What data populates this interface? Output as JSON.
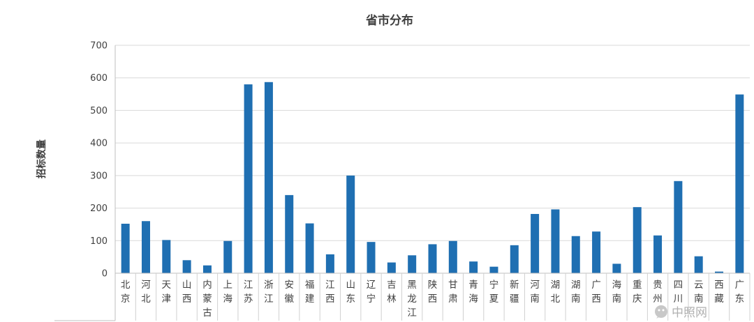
{
  "chart_data": {
    "type": "bar",
    "title": "省市分布",
    "xlabel": "",
    "ylabel": "招标数量",
    "ylim": [
      0,
      700
    ],
    "yticks": [
      0,
      100,
      200,
      300,
      400,
      500,
      600,
      700
    ],
    "grid": true,
    "legend": "none",
    "bar_color": "#1f6fb2",
    "categories": [
      "北京",
      "河北",
      "天津",
      "山西",
      "内蒙古",
      "上海",
      "江苏",
      "浙江",
      "安徽",
      "福建",
      "江西",
      "山东",
      "辽宁",
      "吉林",
      "黑龙江",
      "陕西",
      "甘肃",
      "青海",
      "宁夏",
      "新疆",
      "河南",
      "湖北",
      "湖南",
      "广西",
      "海南",
      "重庆",
      "贵州",
      "四川",
      "云南",
      "西藏",
      "广东"
    ],
    "values": [
      152,
      160,
      102,
      40,
      24,
      99,
      580,
      587,
      240,
      153,
      58,
      300,
      96,
      33,
      55,
      89,
      99,
      36,
      20,
      86,
      182,
      196,
      114,
      128,
      29,
      203,
      116,
      283,
      52,
      5,
      549
    ]
  },
  "watermark": {
    "icon": "wechat-icon",
    "text": "中照网"
  }
}
